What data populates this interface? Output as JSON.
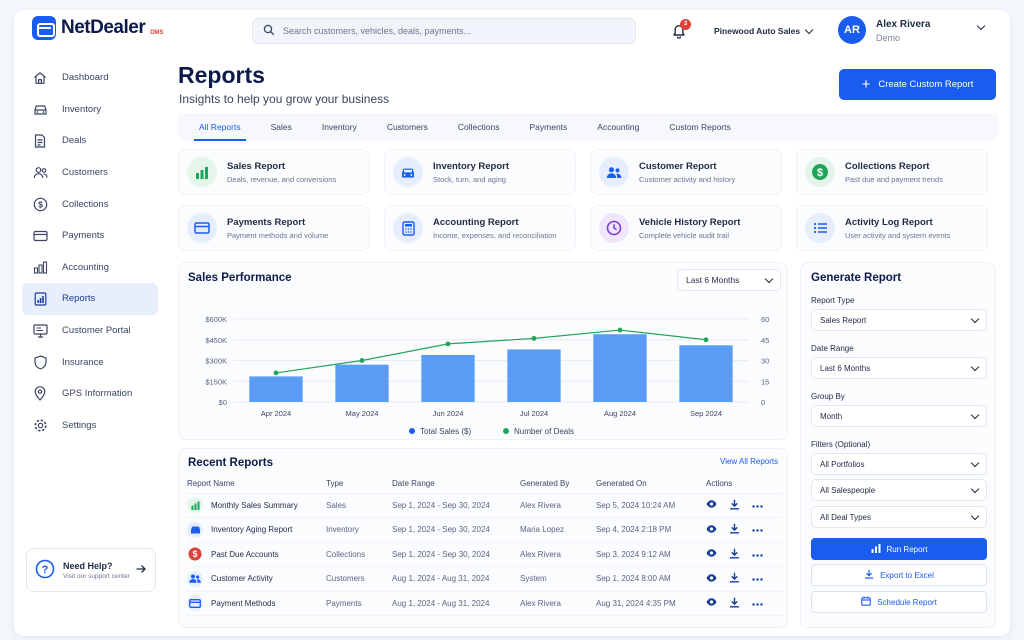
{
  "brand": {
    "name": "NetDealer",
    "suffix": "DMS"
  },
  "search": {
    "placeholder": "Search customers, vehicles, deals, payments..."
  },
  "notifications": {
    "count": "3"
  },
  "dealership": "Pinewood Auto Sales",
  "user": {
    "initials": "AR",
    "name": "Alex Rivera",
    "role": "Demo"
  },
  "sidebar": {
    "items": [
      {
        "label": "Dashboard",
        "icon": "home-icon"
      },
      {
        "label": "Inventory",
        "icon": "car-icon"
      },
      {
        "label": "Deals",
        "icon": "document-icon"
      },
      {
        "label": "Customers",
        "icon": "users-icon"
      },
      {
        "label": "Collections",
        "icon": "dollar-icon"
      },
      {
        "label": "Payments",
        "icon": "card-icon"
      },
      {
        "label": "Accounting",
        "icon": "bar-chart-icon"
      },
      {
        "label": "Reports",
        "icon": "report-icon",
        "active": true
      },
      {
        "label": "Customer Portal",
        "icon": "monitor-icon"
      },
      {
        "label": "Insurance",
        "icon": "shield-icon"
      },
      {
        "label": "GPS Information",
        "icon": "map-pin-icon"
      },
      {
        "label": "Settings",
        "icon": "gear-icon"
      }
    ]
  },
  "help": {
    "title": "Need Help?",
    "subtitle": "Visit our support center"
  },
  "page": {
    "title": "Reports",
    "subtitle": "Insights to help you grow your business",
    "create_button": "Create Custom Report"
  },
  "tabs": [
    "All Reports",
    "Sales",
    "Inventory",
    "Customers",
    "Collections",
    "Payments",
    "Accounting",
    "Custom Reports"
  ],
  "report_cards": [
    {
      "title": "Sales Report",
      "desc": "Deals, revenue, and conversions",
      "icon": "bar-chart-icon",
      "color": "#22a55b",
      "bg": "#e4f5ea"
    },
    {
      "title": "Inventory Report",
      "desc": "Stock, turn, and aging",
      "icon": "car-icon",
      "color": "#1a5cf0",
      "bg": "#e6edfc"
    },
    {
      "title": "Customer Report",
      "desc": "Customer activity and history",
      "icon": "users-icon",
      "color": "#1a5cf0",
      "bg": "#e6edfc"
    },
    {
      "title": "Collections Report",
      "desc": "Past due and payment trends",
      "icon": "dollar-icon",
      "color": "#22a55b",
      "bg": "#e4f5ea"
    },
    {
      "title": "Payments Report",
      "desc": "Payment methods and volume",
      "icon": "card-icon",
      "color": "#1a5cf0",
      "bg": "#e6edfc"
    },
    {
      "title": "Accounting Report",
      "desc": "Income, expenses, and reconciliation",
      "icon": "calculator-icon",
      "color": "#1a5cf0",
      "bg": "#e6edfc"
    },
    {
      "title": "Vehicle History Report",
      "desc": "Complete vehicle audit trail",
      "icon": "clock-icon",
      "color": "#7b3fd4",
      "bg": "#efe6fb"
    },
    {
      "title": "Activity Log Report",
      "desc": "User activity and system events",
      "icon": "list-icon",
      "color": "#1a5cf0",
      "bg": "#e6edfc"
    }
  ],
  "sales_performance": {
    "title": "Sales Performance",
    "range": "Last 6 Months",
    "legend": {
      "bars": "Total Sales ($)",
      "line": "Number of Deals"
    }
  },
  "chart_data": {
    "type": "bar",
    "categories": [
      "Apr 2024",
      "May 2024",
      "Jun 2024",
      "Jul 2024",
      "Aug 2024",
      "Sep 2024"
    ],
    "series": [
      {
        "name": "Total Sales ($)",
        "type": "bar",
        "axis": "left",
        "color": "#5b9cf6",
        "values": [
          185000,
          270000,
          340000,
          380000,
          490000,
          410000
        ]
      },
      {
        "name": "Number of Deals",
        "type": "line",
        "axis": "right",
        "color": "#22a55b",
        "values": [
          21,
          30,
          42,
          46,
          52,
          45
        ]
      }
    ],
    "y_left": {
      "ylim": [
        0,
        600000
      ],
      "ticks": [
        "$0",
        "$150K",
        "$300K",
        "$450K",
        "$600K"
      ]
    },
    "y_right": {
      "ylim": [
        0,
        60
      ],
      "ticks": [
        "0",
        "15",
        "30",
        "45",
        "60"
      ]
    },
    "grid": true,
    "legend_position": "bottom"
  },
  "recent_reports": {
    "title": "Recent Reports",
    "view_all": "View All Reports",
    "columns": [
      "Report Name",
      "Type",
      "Date Range",
      "Generated By",
      "Generated On",
      "Actions"
    ],
    "rows": [
      {
        "name": "Monthly Sales Summary",
        "type": "Sales",
        "range": "Sep 1, 2024 - Sep 30, 2024",
        "by": "Alex Rivera",
        "on": "Sep 5, 2024 10:24 AM",
        "icon": "bar-chart-icon",
        "color": "#22a55b",
        "bg": "#e4f5ea"
      },
      {
        "name": "Inventory Aging Report",
        "type": "Inventory",
        "range": "Sep 1, 2024 - Sep 30, 2024",
        "by": "Maria Lopez",
        "on": "Sep 4, 2024 2:18 PM",
        "icon": "car-icon",
        "color": "#1a5cf0",
        "bg": "#e6edfc"
      },
      {
        "name": "Past Due Accounts",
        "type": "Collections",
        "range": "Sep 1, 2024 - Sep 30, 2024",
        "by": "Alex Rivera",
        "on": "Sep 3, 2024 9:12 AM",
        "icon": "dollar-icon",
        "color": "#e0403a",
        "bg": "#e0403a"
      },
      {
        "name": "Customer Activity",
        "type": "Customers",
        "range": "Aug 1, 2024 - Aug 31, 2024",
        "by": "System",
        "on": "Sep 1, 2024 8:00 AM",
        "icon": "users-icon",
        "color": "#1a5cf0",
        "bg": "#e6edfc"
      },
      {
        "name": "Payment Methods",
        "type": "Payments",
        "range": "Aug 1, 2024 - Aug 31, 2024",
        "by": "Alex Rivera",
        "on": "Aug 31, 2024 4:35 PM",
        "icon": "card-icon",
        "color": "#1a5cf0",
        "bg": "#e6edfc"
      }
    ]
  },
  "generate_report": {
    "title": "Generate Report",
    "report_type_label": "Report Type",
    "report_type_value": "Sales Report",
    "date_range_label": "Date Range",
    "date_range_value": "Last 6 Months",
    "group_by_label": "Group By",
    "group_by_value": "Month",
    "filters_label": "Filters (Optional)",
    "filter_portfolios": "All Portfolios",
    "filter_salespeople": "All Salespeople",
    "filter_deal_types": "All Deal Types",
    "run_button": "Run Report",
    "export_button": "Export to Excel",
    "schedule_button": "Schedule Report"
  },
  "colors": {
    "accent": "#1a5cf0",
    "success": "#22a55b",
    "danger": "#e0403a"
  }
}
